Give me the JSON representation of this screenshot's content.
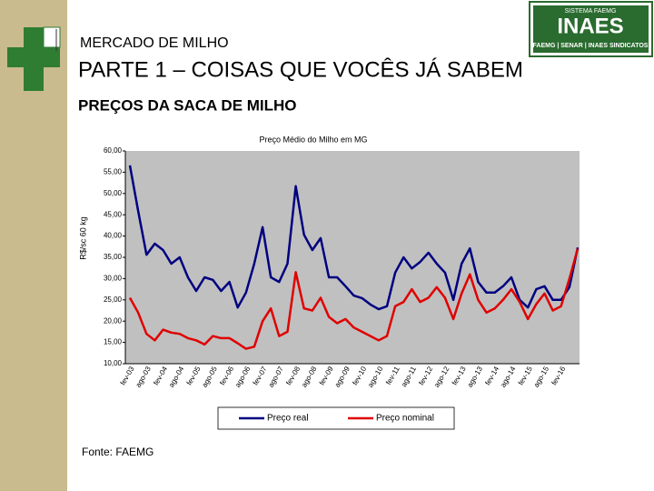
{
  "slide": {
    "kicker": "MERCADO DE MILHO",
    "heading": "PARTE 1 – COISAS QUE VOCÊS JÁ SABEM",
    "section": "PREÇOS DA SACA DE MILHO",
    "source": "Fonte: FAEMG",
    "logo": {
      "top": "SISTEMA FAEMG",
      "name": "INAES",
      "bottom": "FAEMG | SENAR | INAES SINDICATOS"
    }
  },
  "chart_data": {
    "type": "line",
    "title": "Preço Médio do Milho em MG",
    "y_label": "R$/sc 60 kg",
    "categories": [
      "fev-03",
      null,
      "ago-03",
      null,
      "fev-04",
      null,
      "ago-04",
      null,
      "fev-05",
      null,
      "ago-05",
      null,
      "fev-06",
      null,
      "ago-06",
      null,
      "fev-07",
      null,
      "ago-07",
      null,
      "fev-08",
      null,
      "ago-08",
      null,
      "fev-09",
      null,
      "ago-09",
      null,
      "fev-10",
      null,
      "ago-10",
      null,
      "fev-11",
      null,
      "ago-11",
      null,
      "fev-12",
      null,
      "ago-12",
      null,
      "fev-13",
      null,
      "ago-13",
      null,
      "fev-14",
      null,
      "ago-14",
      null,
      "fev-15",
      null,
      "ago-15",
      null,
      "fev-16",
      null,
      null
    ],
    "series": [
      {
        "name": "Preço real",
        "color": "#000080",
        "values": [
          56.6,
          45.9,
          35.6,
          38.2,
          36.7,
          33.5,
          35.0,
          30.3,
          27.1,
          30.3,
          29.7,
          27.1,
          29.2,
          23.2,
          26.7,
          33.5,
          42.1,
          30.3,
          29.2,
          33.5,
          51.7,
          40.3,
          36.7,
          39.5,
          30.3,
          30.3,
          28.2,
          26.0,
          25.4,
          23.9,
          22.8,
          23.5,
          31.4,
          35.0,
          32.4,
          33.9,
          36.1,
          33.5,
          31.4,
          25.0,
          33.5,
          37.1,
          29.2,
          26.7,
          26.7,
          28.2,
          30.3,
          25.0,
          23.2,
          27.5,
          28.2,
          25.0,
          25.0,
          28.0,
          37.3
        ]
      },
      {
        "name": "Preço nominal",
        "color": "#e00000",
        "values": [
          25.5,
          22,
          17,
          15.5,
          18,
          17.3,
          17,
          16,
          15.5,
          14.5,
          16.5,
          16,
          16,
          14.8,
          13.5,
          14,
          20,
          23,
          16.5,
          17.5,
          31.5,
          23,
          22.5,
          25.5,
          21,
          19.5,
          20.5,
          18.5,
          17.5,
          16.5,
          15.5,
          16.5,
          23.5,
          24.5,
          27.5,
          24.5,
          25.5,
          28,
          25.5,
          20.5,
          26.5,
          31,
          25,
          22,
          23,
          25,
          27.5,
          24.5,
          20.5,
          24,
          26.5,
          22.5,
          23.5,
          30,
          37
        ]
      }
    ],
    "ylim": [
      10,
      60
    ],
    "yticks": [
      {
        "value": 10,
        "label": "10,00"
      },
      {
        "value": 15,
        "label": "15,00"
      },
      {
        "value": 20,
        "label": "20,00"
      },
      {
        "value": 25,
        "label": "25,00"
      },
      {
        "value": 30,
        "label": "30,00"
      },
      {
        "value": 35,
        "label": "35,00"
      },
      {
        "value": 40,
        "label": "40,00"
      },
      {
        "value": 45,
        "label": "45,00"
      },
      {
        "value": 50,
        "label": "50,00"
      },
      {
        "value": 55,
        "label": "55,00"
      },
      {
        "value": 60,
        "label": "60,00"
      }
    ],
    "legend": "bottom"
  }
}
